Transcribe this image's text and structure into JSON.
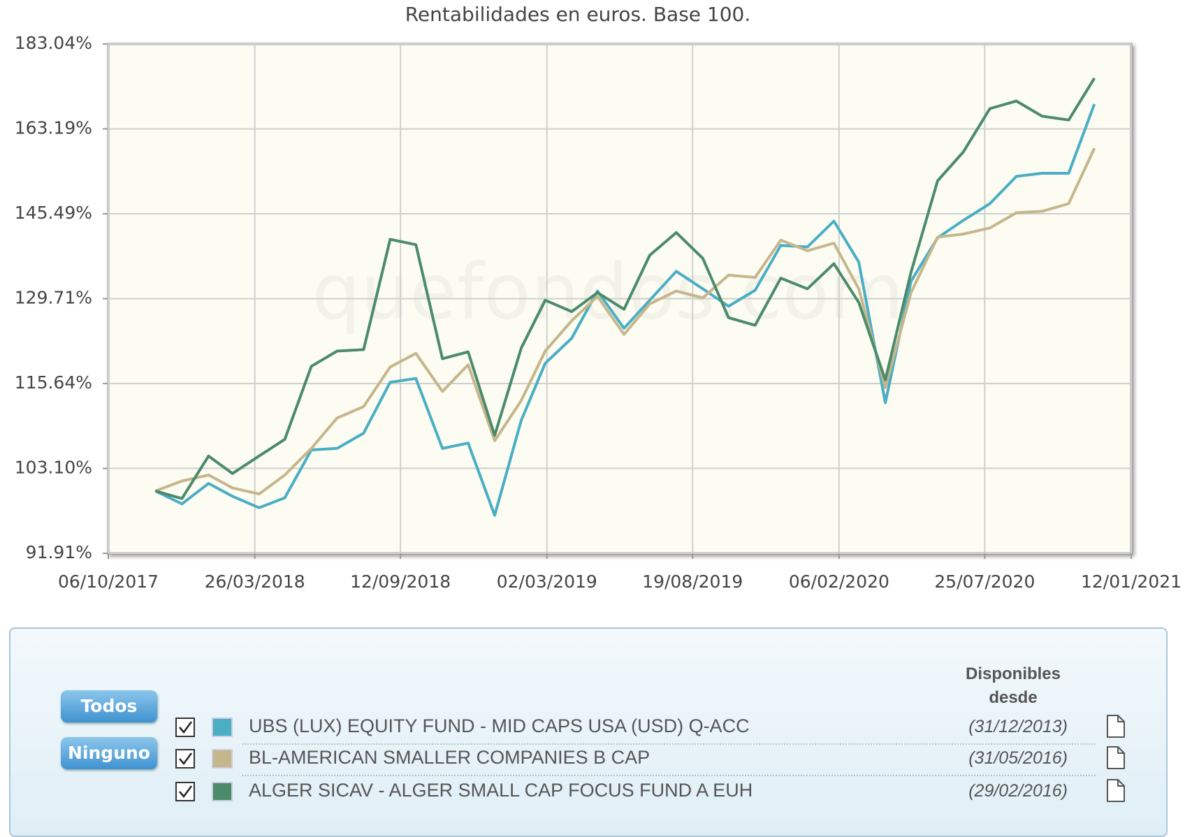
{
  "chart_data": {
    "type": "line",
    "title": "Rentabilidades en euros. Base 100.",
    "watermark": "quefondos.com",
    "x": [
      "2017-11-30",
      "2017-12-31",
      "2018-01-31",
      "2018-02-28",
      "2018-03-31",
      "2018-04-30",
      "2018-05-31",
      "2018-06-30",
      "2018-07-31",
      "2018-08-31",
      "2018-09-30",
      "2018-10-31",
      "2018-11-30",
      "2018-12-31",
      "2019-01-31",
      "2019-02-28",
      "2019-03-31",
      "2019-04-30",
      "2019-05-31",
      "2019-06-30",
      "2019-07-31",
      "2019-08-31",
      "2019-09-30",
      "2019-10-31",
      "2019-11-30",
      "2019-12-31",
      "2020-01-31",
      "2020-02-29",
      "2020-03-31",
      "2020-04-30",
      "2020-05-31",
      "2020-06-30",
      "2020-07-31",
      "2020-08-31",
      "2020-09-30",
      "2020-10-31",
      "2020-11-30"
    ],
    "series": [
      {
        "name": "UBS (LUX) EQUITY FUND - MID CAPS USA (USD) Q-ACC",
        "color": "#4aaec4",
        "values": [
          100,
          98.27,
          101.03,
          99.28,
          97.76,
          99.08,
          105.71,
          105.93,
          108.13,
          115.84,
          116.44,
          105.93,
          106.69,
          96.76,
          110.03,
          118.85,
          122.96,
          131.05,
          124.61,
          129.44,
          134.6,
          131.45,
          128.38,
          131.18,
          139.39,
          139.1,
          144.05,
          136.27,
          112.67,
          132.81,
          140.83,
          144.2,
          147.49,
          153.05,
          153.68,
          153.68,
          168.77
        ]
      },
      {
        "name": "BL-AMERICAN SMALLER COMPANIES B CAP",
        "color": "#c6b68c",
        "values": [
          100,
          101.35,
          102.18,
          100.41,
          99.59,
          102.18,
          105.93,
          110.37,
          112.09,
          118.25,
          120.45,
          114.42,
          118.61,
          107.02,
          113.01,
          120.83,
          125.9,
          130.11,
          123.59,
          128.78,
          131.05,
          129.84,
          133.91,
          133.49,
          140.39,
          138.39,
          139.82,
          131.45,
          115,
          130.77,
          140.97,
          141.55,
          142.72,
          145.69,
          145.98,
          147.49,
          158.99
        ]
      },
      {
        "name": "ALGER SICAV - ALGER SMALL CAP FOCUS FUND A EUH",
        "color": "#4b8b6b",
        "values": [
          100,
          98.98,
          104.84,
          102.39,
          104.84,
          107.24,
          118.37,
          120.83,
          121.07,
          140.54,
          139.53,
          119.59,
          120.7,
          107.8,
          121.32,
          129.44,
          127.46,
          130.77,
          127.85,
          137.54,
          141.84,
          136.97,
          126.41,
          125.12,
          133.36,
          131.45,
          135.99,
          129.04,
          116.2,
          134.46,
          152.12,
          158.17,
          167.72,
          169.45,
          166.01,
          165.15,
          174.77
        ]
      }
    ],
    "ylim": [
      91.91,
      183.04
    ],
    "log_scale": true,
    "yticks": [
      {
        "value": 91.91,
        "label": "91.91%"
      },
      {
        "value": 103.1,
        "label": "103.10%"
      },
      {
        "value": 115.64,
        "label": "115.64%"
      },
      {
        "value": 129.71,
        "label": "129.71%"
      },
      {
        "value": 145.49,
        "label": "145.49%"
      },
      {
        "value": 163.19,
        "label": "163.19%"
      },
      {
        "value": 183.04,
        "label": "183.04%"
      }
    ],
    "xlim": [
      "2017-10-06",
      "2021-01-12"
    ],
    "xticks": [
      {
        "value": "2017-10-06",
        "label": "06/10/2017"
      },
      {
        "value": "2018-03-26",
        "label": "26/03/2018"
      },
      {
        "value": "2018-09-12",
        "label": "12/09/2018"
      },
      {
        "value": "2019-03-02",
        "label": "02/03/2019"
      },
      {
        "value": "2019-08-19",
        "label": "19/08/2019"
      },
      {
        "value": "2020-02-06",
        "label": "06/02/2020"
      },
      {
        "value": "2020-07-25",
        "label": "25/07/2020"
      },
      {
        "value": "2021-01-12",
        "label": "12/01/2021"
      }
    ],
    "grid": true
  },
  "legend_panel": {
    "buttons": [
      "Todos",
      "Ninguno"
    ],
    "header": "Disponibles desde",
    "available_since": [
      "(31/12/2013)",
      "(31/05/2016)",
      "(29/02/2016)"
    ]
  }
}
